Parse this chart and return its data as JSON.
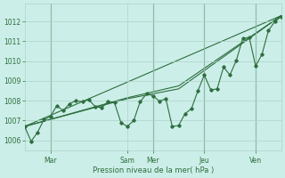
{
  "background_color": "#cceee8",
  "grid_color": "#aad4c8",
  "line_color": "#2d6e3e",
  "vline_color": "#2d6e3e",
  "xlabel": "Pression niveau de la mer( hPa )",
  "ylim": [
    1005.5,
    1012.9
  ],
  "yticks": [
    1006,
    1007,
    1008,
    1009,
    1010,
    1011,
    1012
  ],
  "xlim_min": 0,
  "xlim_max": 240,
  "day_tick_positions": [
    24,
    96,
    120,
    168,
    216
  ],
  "day_labels": [
    "Mar",
    "Sam",
    "Mer",
    "Jeu",
    "Ven"
  ],
  "vline_positions": [
    24,
    120,
    168,
    216
  ],
  "main_line_x": [
    0,
    6,
    12,
    18,
    24,
    30,
    36,
    42,
    48,
    54,
    60,
    66,
    72,
    78,
    84,
    90,
    96,
    102,
    108,
    114,
    120,
    126,
    132,
    138,
    144,
    150,
    156,
    162,
    168,
    174,
    180,
    186,
    192,
    198,
    204,
    210,
    216,
    222,
    228,
    234,
    240
  ],
  "main_line_y": [
    1006.7,
    1005.95,
    1006.4,
    1007.05,
    1007.2,
    1007.75,
    1007.5,
    1007.85,
    1008.0,
    1007.95,
    1008.05,
    1007.7,
    1007.65,
    1007.95,
    1007.9,
    1006.9,
    1006.7,
    1007.0,
    1007.95,
    1008.35,
    1008.25,
    1007.98,
    1008.1,
    1006.7,
    1006.75,
    1007.35,
    1007.6,
    1008.5,
    1009.3,
    1008.55,
    1008.6,
    1009.7,
    1009.3,
    1010.05,
    1011.15,
    1011.2,
    1009.75,
    1010.35,
    1011.55,
    1012.0,
    1012.25
  ],
  "trend1_x": [
    0,
    240
  ],
  "trend1_y": [
    1006.7,
    1012.3
  ],
  "trend2_x": [
    0,
    96,
    144,
    240
  ],
  "trend2_y": [
    1006.7,
    1008.1,
    1008.6,
    1012.3
  ],
  "trend3_x": [
    0,
    96,
    144,
    240
  ],
  "trend3_y": [
    1006.7,
    1008.15,
    1008.75,
    1012.3
  ]
}
